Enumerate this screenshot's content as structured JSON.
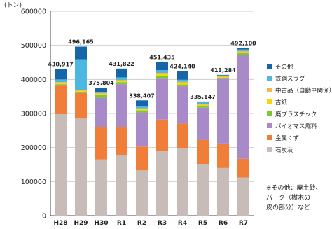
{
  "chart_data": {
    "type": "bar",
    "stacked": true,
    "y_unit": "(トン)",
    "ylim": [
      0,
      600000
    ],
    "yticks": [
      0,
      100000,
      200000,
      300000,
      400000,
      500000,
      600000
    ],
    "ytick_labels": [
      "0",
      "100000",
      "200000",
      "300000",
      "400000",
      "500000",
      "600000"
    ],
    "categories": [
      "H28",
      "H29",
      "H30",
      "R1",
      "R2",
      "R3",
      "R4",
      "R5",
      "R6",
      "R7"
    ],
    "totals": [
      430917,
      496165,
      375804,
      431822,
      338407,
      451435,
      424140,
      335147,
      413284,
      492100
    ],
    "total_labels": [
      "430,917",
      "496,165",
      "375,804",
      "431,822",
      "338,407",
      "451,435",
      "424,140",
      "335,147",
      "413,284",
      "492,100"
    ],
    "series": [
      {
        "name": "石炭灰",
        "color": "#c8bcb8",
        "values": [
          298000,
          285000,
          165000,
          178000,
          133000,
          190000,
          198000,
          152000,
          140000,
          112000
        ]
      },
      {
        "name": "金属くず",
        "color": "#f07e38",
        "values": [
          84000,
          75000,
          95000,
          83000,
          70000,
          92000,
          72000,
          70000,
          72000,
          55000
        ]
      },
      {
        "name": "バイオマス燃料",
        "color": "#a98ac9",
        "values": [
          0,
          0,
          86000,
          125000,
          100000,
          120000,
          110000,
          95000,
          190000,
          305000
        ]
      },
      {
        "name": "廃プラスチック",
        "color": "#7cc832",
        "values": [
          4000,
          4000,
          8000,
          6000,
          6000,
          9000,
          5000,
          5000,
          3000,
          5000
        ]
      },
      {
        "name": "古紙",
        "color": "#f5d800",
        "values": [
          2000,
          2000,
          3000,
          3000,
          3000,
          4000,
          4000,
          3000,
          2000,
          3000
        ]
      },
      {
        "name": "中古品（自動車関係）",
        "color": "#f5b54a",
        "values": [
          4000,
          3000,
          3000,
          3000,
          3000,
          4000,
          4000,
          3000,
          2000,
          3000
        ]
      },
      {
        "name": "鉄鋼スラグ",
        "color": "#4cb8e0",
        "values": [
          8000,
          90000,
          2000,
          8000,
          7000,
          8000,
          6000,
          6000,
          3000,
          5000
        ]
      },
      {
        "name": "その他",
        "color": "#1565a8",
        "values": [
          30917,
          37165,
          13804,
          25822,
          16407,
          24435,
          25140,
          1147,
          1284,
          4100
        ]
      }
    ],
    "legend_order": [
      "その他",
      "鉄鋼スラグ",
      "中古品（自動車関係）",
      "古紙",
      "廃プラスチック",
      "バイオマス燃料",
      "金属くず",
      "石炭灰"
    ],
    "legend_position": "right",
    "note": "※その他：廃土砂、\nバーク（樹木の\n皮の部分）など"
  }
}
